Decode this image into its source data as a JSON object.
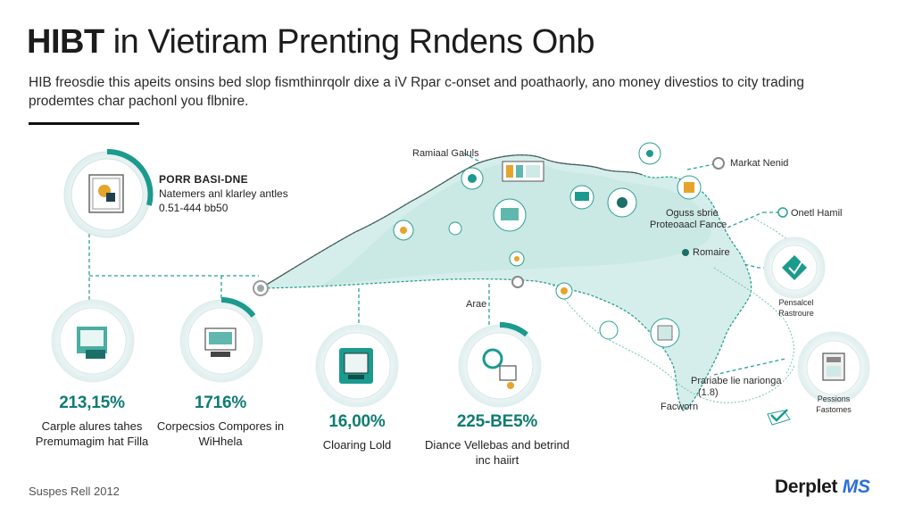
{
  "header": {
    "title_bold": "HIBT",
    "title_rest": " in Vietiram Prenting Rndens Onb",
    "subtitle": "HIB freosdie this apeits onsins bed slop fismthinrqolr dixe a iV Rpar c-onset and poathaorly, ano money divestios to city trading prodemtes char pachonl you flbnire."
  },
  "top_stat": {
    "heading": "PORR BASI-DNE",
    "line1": "Natemers anl klarley antles",
    "line2": "0.51-444 bb50"
  },
  "map_labels": {
    "ramial": "Ramiaal Galuls",
    "market": "Markat Nenid",
    "onetl": "Onetl Hamil",
    "oguss": "Oguss sbrie",
    "proteo": "Proteoaacl Fance",
    "ramaire": "Romaire",
    "arae": "Arae",
    "pensalcel": "Pensalcel",
    "rustroure": "Rastroure",
    "prariabe": "Prariabe lie narionga",
    "code": "(1.8)",
    "facworn": "Facworn",
    "pessions": "Pessions",
    "fastomes": "Fastomes"
  },
  "stats": [
    {
      "pct": "213,15%",
      "desc": "Carple alures tahes Premumagim hat Filla"
    },
    {
      "pct": "1716%",
      "desc": "Corpecsios Compores in WiHhela"
    },
    {
      "pct": "16,00%",
      "desc": "Cloaring Lold"
    },
    {
      "pct": "225-BE5%",
      "desc": "Diance Vellebas and betrind inc haiirt"
    }
  ],
  "footer": {
    "source": "Suspes Rell 2012",
    "brand_main": "Derplet ",
    "brand_accent": "MS"
  },
  "colors": {
    "teal": "#1b9a8e",
    "teal_light": "#cfe9e6",
    "map_fill": "#d6eeeb",
    "accent_text": "#0f7c73"
  }
}
